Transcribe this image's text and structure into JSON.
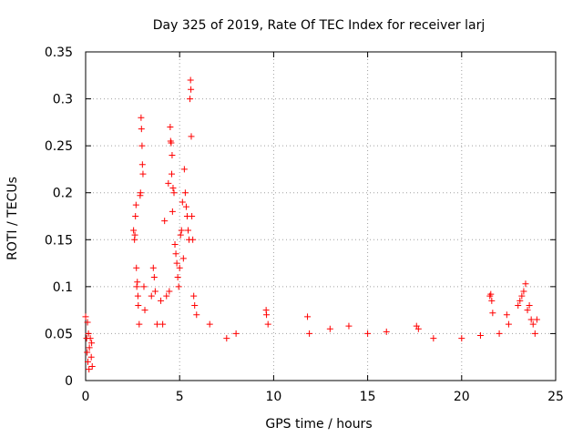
{
  "chart_data": {
    "type": "scatter",
    "title": "Day 325 of 2019, Rate Of TEC Index for receiver larj",
    "xlabel": "GPS time / hours",
    "ylabel": "ROTI / TECUs",
    "xlim": [
      0,
      25
    ],
    "ylim": [
      0,
      0.35
    ],
    "grid": true,
    "x_ticks": [
      0,
      5,
      10,
      15,
      20,
      25
    ],
    "x_tick_labels": [
      "0",
      "5",
      "10",
      "15",
      "20",
      "25"
    ],
    "y_ticks": [
      0,
      0.05,
      0.1,
      0.15,
      0.2,
      0.25,
      0.3,
      0.35
    ],
    "y_tick_labels": [
      "0",
      "0.05",
      "0.1",
      "0.15",
      "0.2",
      "0.25",
      "0.3",
      "0.35"
    ],
    "marker": "+",
    "marker_color": "#ff0000",
    "series": [
      {
        "name": "ROTI",
        "points": [
          [
            0.0,
            0.068
          ],
          [
            0.05,
            0.045
          ],
          [
            0.08,
            0.03
          ],
          [
            0.1,
            0.062
          ],
          [
            0.12,
            0.02
          ],
          [
            0.15,
            0.05
          ],
          [
            0.18,
            0.012
          ],
          [
            0.2,
            0.035
          ],
          [
            0.25,
            0.045
          ],
          [
            0.3,
            0.025
          ],
          [
            0.32,
            0.04
          ],
          [
            0.35,
            0.015
          ],
          [
            2.55,
            0.16
          ],
          [
            2.6,
            0.15
          ],
          [
            2.62,
            0.155
          ],
          [
            2.65,
            0.175
          ],
          [
            2.68,
            0.187
          ],
          [
            2.7,
            0.12
          ],
          [
            2.72,
            0.1
          ],
          [
            2.75,
            0.105
          ],
          [
            2.78,
            0.09
          ],
          [
            2.8,
            0.08
          ],
          [
            2.85,
            0.06
          ],
          [
            2.9,
            0.197
          ],
          [
            2.92,
            0.2
          ],
          [
            2.95,
            0.28
          ],
          [
            2.97,
            0.268
          ],
          [
            3.0,
            0.25
          ],
          [
            3.02,
            0.23
          ],
          [
            3.05,
            0.22
          ],
          [
            3.1,
            0.1
          ],
          [
            3.15,
            0.075
          ],
          [
            3.5,
            0.09
          ],
          [
            3.6,
            0.12
          ],
          [
            3.65,
            0.11
          ],
          [
            3.7,
            0.095
          ],
          [
            3.8,
            0.06
          ],
          [
            4.0,
            0.085
          ],
          [
            4.1,
            0.06
          ],
          [
            4.2,
            0.17
          ],
          [
            4.3,
            0.09
          ],
          [
            4.4,
            0.21
          ],
          [
            4.45,
            0.095
          ],
          [
            4.5,
            0.27
          ],
          [
            4.52,
            0.255
          ],
          [
            4.55,
            0.253
          ],
          [
            4.58,
            0.22
          ],
          [
            4.6,
            0.24
          ],
          [
            4.62,
            0.18
          ],
          [
            4.65,
            0.205
          ],
          [
            4.7,
            0.2
          ],
          [
            4.75,
            0.145
          ],
          [
            4.8,
            0.135
          ],
          [
            4.85,
            0.125
          ],
          [
            4.9,
            0.11
          ],
          [
            4.95,
            0.1
          ],
          [
            5.0,
            0.12
          ],
          [
            5.05,
            0.155
          ],
          [
            5.1,
            0.16
          ],
          [
            5.15,
            0.19
          ],
          [
            5.2,
            0.13
          ],
          [
            5.25,
            0.225
          ],
          [
            5.3,
            0.2
          ],
          [
            5.35,
            0.185
          ],
          [
            5.4,
            0.175
          ],
          [
            5.45,
            0.16
          ],
          [
            5.5,
            0.15
          ],
          [
            5.55,
            0.3
          ],
          [
            5.58,
            0.32
          ],
          [
            5.6,
            0.31
          ],
          [
            5.62,
            0.26
          ],
          [
            5.65,
            0.175
          ],
          [
            5.7,
            0.15
          ],
          [
            5.75,
            0.09
          ],
          [
            5.8,
            0.08
          ],
          [
            5.9,
            0.07
          ],
          [
            6.6,
            0.06
          ],
          [
            7.5,
            0.045
          ],
          [
            8.0,
            0.05
          ],
          [
            9.6,
            0.075
          ],
          [
            9.62,
            0.07
          ],
          [
            9.7,
            0.06
          ],
          [
            11.8,
            0.068
          ],
          [
            11.9,
            0.05
          ],
          [
            13.0,
            0.055
          ],
          [
            14.0,
            0.058
          ],
          [
            15.0,
            0.05
          ],
          [
            16.0,
            0.052
          ],
          [
            17.6,
            0.058
          ],
          [
            17.7,
            0.055
          ],
          [
            18.5,
            0.045
          ],
          [
            20.0,
            0.045
          ],
          [
            21.0,
            0.048
          ],
          [
            21.5,
            0.09
          ],
          [
            21.55,
            0.092
          ],
          [
            21.6,
            0.085
          ],
          [
            21.65,
            0.072
          ],
          [
            22.0,
            0.05
          ],
          [
            22.4,
            0.07
          ],
          [
            22.5,
            0.06
          ],
          [
            23.0,
            0.08
          ],
          [
            23.1,
            0.085
          ],
          [
            23.2,
            0.09
          ],
          [
            23.3,
            0.095
          ],
          [
            23.4,
            0.103
          ],
          [
            23.5,
            0.075
          ],
          [
            23.6,
            0.08
          ],
          [
            23.7,
            0.065
          ],
          [
            23.8,
            0.06
          ],
          [
            23.9,
            0.05
          ],
          [
            24.0,
            0.065
          ]
        ]
      }
    ]
  }
}
